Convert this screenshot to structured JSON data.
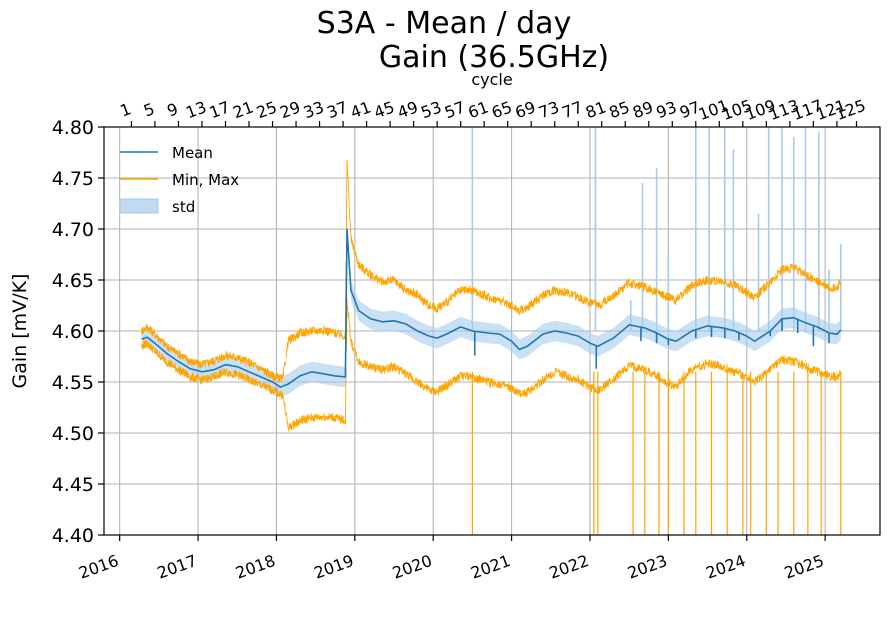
{
  "chart_data": {
    "type": "line",
    "title_line1": "S3A - Mean / day",
    "title_line2": "Gain (36.5GHz)",
    "ylabel": "Gain [mV/K]",
    "top_xlabel": "cycle",
    "ylim": [
      4.4,
      4.8
    ],
    "xlim": [
      2015.8,
      2025.7
    ],
    "y_ticks": [
      "4.40",
      "4.45",
      "4.50",
      "4.55",
      "4.60",
      "4.65",
      "4.70",
      "4.75",
      "4.80"
    ],
    "x_ticks": [
      {
        "label": "2016",
        "value": 2016.0
      },
      {
        "label": "2017",
        "value": 2017.0
      },
      {
        "label": "2018",
        "value": 2018.0
      },
      {
        "label": "2019",
        "value": 2019.0
      },
      {
        "label": "2020",
        "value": 2020.0
      },
      {
        "label": "2021",
        "value": 2021.0
      },
      {
        "label": "2022",
        "value": 2022.0
      },
      {
        "label": "2023",
        "value": 2023.0
      },
      {
        "label": "2024",
        "value": 2024.0
      },
      {
        "label": "2025",
        "value": 2025.0
      }
    ],
    "top_ticks": [
      {
        "label": "1",
        "value": 2016.15
      },
      {
        "label": "5",
        "value": 2016.45
      },
      {
        "label": "9",
        "value": 2016.75
      },
      {
        "label": "13",
        "value": 2017.05
      },
      {
        "label": "17",
        "value": 2017.35
      },
      {
        "label": "21",
        "value": 2017.65
      },
      {
        "label": "25",
        "value": 2017.95
      },
      {
        "label": "29",
        "value": 2018.25
      },
      {
        "label": "33",
        "value": 2018.55
      },
      {
        "label": "37",
        "value": 2018.85
      },
      {
        "label": "41",
        "value": 2019.15
      },
      {
        "label": "45",
        "value": 2019.45
      },
      {
        "label": "49",
        "value": 2019.75
      },
      {
        "label": "53",
        "value": 2020.05
      },
      {
        "label": "57",
        "value": 2020.35
      },
      {
        "label": "61",
        "value": 2020.65
      },
      {
        "label": "65",
        "value": 2020.95
      },
      {
        "label": "69",
        "value": 2021.25
      },
      {
        "label": "73",
        "value": 2021.55
      },
      {
        "label": "77",
        "value": 2021.85
      },
      {
        "label": "81",
        "value": 2022.15
      },
      {
        "label": "85",
        "value": 2022.45
      },
      {
        "label": "89",
        "value": 2022.75
      },
      {
        "label": "93",
        "value": 2023.05
      },
      {
        "label": "97",
        "value": 2023.35
      },
      {
        "label": "101",
        "value": 2023.65
      },
      {
        "label": "105",
        "value": 2023.95
      },
      {
        "label": "109",
        "value": 2024.25
      },
      {
        "label": "113",
        "value": 2024.55
      },
      {
        "label": "117",
        "value": 2024.85
      },
      {
        "label": "121",
        "value": 2025.15
      },
      {
        "label": "125",
        "value": 2025.4
      }
    ],
    "legend": [
      {
        "name": "Mean",
        "color": "#1f77b4",
        "style": "line"
      },
      {
        "name": "Min, Max",
        "color": "#ffa500",
        "style": "line"
      },
      {
        "name": "std",
        "color": "#a6cbec",
        "style": "patch"
      }
    ],
    "series": [
      {
        "name": "Mean",
        "color": "#1f77b4",
        "points": [
          [
            2016.28,
            4.592
          ],
          [
            2016.35,
            4.594
          ],
          [
            2016.45,
            4.588
          ],
          [
            2016.6,
            4.578
          ],
          [
            2016.75,
            4.57
          ],
          [
            2016.9,
            4.563
          ],
          [
            2017.05,
            4.56
          ],
          [
            2017.2,
            4.562
          ],
          [
            2017.35,
            4.567
          ],
          [
            2017.5,
            4.565
          ],
          [
            2017.65,
            4.56
          ],
          [
            2017.8,
            4.555
          ],
          [
            2017.95,
            4.55
          ],
          [
            2018.05,
            4.545
          ],
          [
            2018.15,
            4.548
          ],
          [
            2018.3,
            4.556
          ],
          [
            2018.45,
            4.56
          ],
          [
            2018.6,
            4.558
          ],
          [
            2018.75,
            4.556
          ],
          [
            2018.88,
            4.555
          ],
          [
            2018.9,
            4.7
          ],
          [
            2018.95,
            4.64
          ],
          [
            2019.05,
            4.62
          ],
          [
            2019.2,
            4.612
          ],
          [
            2019.35,
            4.609
          ],
          [
            2019.5,
            4.61
          ],
          [
            2019.65,
            4.607
          ],
          [
            2019.8,
            4.6
          ],
          [
            2019.95,
            4.595
          ],
          [
            2020.05,
            4.593
          ],
          [
            2020.2,
            4.598
          ],
          [
            2020.35,
            4.604
          ],
          [
            2020.5,
            4.6
          ],
          [
            2020.7,
            4.598
          ],
          [
            2020.85,
            4.597
          ],
          [
            2021.0,
            4.59
          ],
          [
            2021.1,
            4.582
          ],
          [
            2021.2,
            4.585
          ],
          [
            2021.4,
            4.597
          ],
          [
            2021.55,
            4.6
          ],
          [
            2021.7,
            4.598
          ],
          [
            2021.85,
            4.595
          ],
          [
            2022.0,
            4.588
          ],
          [
            2022.1,
            4.585
          ],
          [
            2022.3,
            4.593
          ],
          [
            2022.5,
            4.606
          ],
          [
            2022.7,
            4.603
          ],
          [
            2022.85,
            4.598
          ],
          [
            2023.0,
            4.592
          ],
          [
            2023.1,
            4.59
          ],
          [
            2023.3,
            4.6
          ],
          [
            2023.5,
            4.605
          ],
          [
            2023.7,
            4.603
          ],
          [
            2023.85,
            4.6
          ],
          [
            2024.0,
            4.595
          ],
          [
            2024.1,
            4.59
          ],
          [
            2024.3,
            4.6
          ],
          [
            2024.45,
            4.612
          ],
          [
            2024.6,
            4.613
          ],
          [
            2024.75,
            4.608
          ],
          [
            2024.9,
            4.604
          ],
          [
            2025.05,
            4.598
          ],
          [
            2025.15,
            4.597
          ],
          [
            2025.2,
            4.601
          ]
        ]
      },
      {
        "name": "Max",
        "color": "#ffa500",
        "points": [
          [
            2016.28,
            4.6
          ],
          [
            2016.35,
            4.604
          ],
          [
            2016.45,
            4.597
          ],
          [
            2016.6,
            4.585
          ],
          [
            2016.75,
            4.578
          ],
          [
            2016.9,
            4.57
          ],
          [
            2017.05,
            4.567
          ],
          [
            2017.2,
            4.571
          ],
          [
            2017.35,
            4.576
          ],
          [
            2017.5,
            4.574
          ],
          [
            2017.65,
            4.569
          ],
          [
            2017.8,
            4.563
          ],
          [
            2017.95,
            4.556
          ],
          [
            2018.08,
            4.553
          ],
          [
            2018.15,
            4.59
          ],
          [
            2018.3,
            4.598
          ],
          [
            2018.45,
            4.6
          ],
          [
            2018.6,
            4.601
          ],
          [
            2018.75,
            4.598
          ],
          [
            2018.88,
            4.595
          ],
          [
            2018.9,
            4.77
          ],
          [
            2018.95,
            4.69
          ],
          [
            2019.05,
            4.665
          ],
          [
            2019.2,
            4.655
          ],
          [
            2019.35,
            4.648
          ],
          [
            2019.5,
            4.65
          ],
          [
            2019.65,
            4.64
          ],
          [
            2019.8,
            4.635
          ],
          [
            2019.95,
            4.625
          ],
          [
            2020.05,
            4.622
          ],
          [
            2020.2,
            4.63
          ],
          [
            2020.35,
            4.64
          ],
          [
            2020.5,
            4.64
          ],
          [
            2020.7,
            4.633
          ],
          [
            2020.85,
            4.63
          ],
          [
            2021.0,
            4.625
          ],
          [
            2021.1,
            4.62
          ],
          [
            2021.2,
            4.623
          ],
          [
            2021.4,
            4.635
          ],
          [
            2021.55,
            4.64
          ],
          [
            2021.7,
            4.638
          ],
          [
            2021.85,
            4.633
          ],
          [
            2022.0,
            4.628
          ],
          [
            2022.1,
            4.625
          ],
          [
            2022.3,
            4.635
          ],
          [
            2022.5,
            4.647
          ],
          [
            2022.7,
            4.643
          ],
          [
            2022.85,
            4.638
          ],
          [
            2023.0,
            4.633
          ],
          [
            2023.1,
            4.63
          ],
          [
            2023.3,
            4.645
          ],
          [
            2023.5,
            4.65
          ],
          [
            2023.7,
            4.648
          ],
          [
            2023.85,
            4.645
          ],
          [
            2024.0,
            4.638
          ],
          [
            2024.1,
            4.633
          ],
          [
            2024.3,
            4.648
          ],
          [
            2024.45,
            4.66
          ],
          [
            2024.6,
            4.662
          ],
          [
            2024.75,
            4.655
          ],
          [
            2024.9,
            4.648
          ],
          [
            2025.05,
            4.643
          ],
          [
            2025.15,
            4.642
          ],
          [
            2025.2,
            4.648
          ]
        ]
      },
      {
        "name": "Min",
        "color": "#ffa500",
        "points": [
          [
            2016.28,
            4.585
          ],
          [
            2016.35,
            4.588
          ],
          [
            2016.45,
            4.58
          ],
          [
            2016.6,
            4.57
          ],
          [
            2016.75,
            4.562
          ],
          [
            2016.9,
            4.555
          ],
          [
            2017.05,
            4.552
          ],
          [
            2017.2,
            4.555
          ],
          [
            2017.35,
            4.56
          ],
          [
            2017.5,
            4.557
          ],
          [
            2017.65,
            4.552
          ],
          [
            2017.8,
            4.547
          ],
          [
            2017.95,
            4.542
          ],
          [
            2018.08,
            4.537
          ],
          [
            2018.15,
            4.505
          ],
          [
            2018.3,
            4.512
          ],
          [
            2018.45,
            4.515
          ],
          [
            2018.6,
            4.516
          ],
          [
            2018.75,
            4.515
          ],
          [
            2018.88,
            4.512
          ],
          [
            2018.9,
            4.63
          ],
          [
            2018.95,
            4.59
          ],
          [
            2019.05,
            4.57
          ],
          [
            2019.2,
            4.565
          ],
          [
            2019.35,
            4.562
          ],
          [
            2019.5,
            4.565
          ],
          [
            2019.65,
            4.558
          ],
          [
            2019.8,
            4.55
          ],
          [
            2019.95,
            4.542
          ],
          [
            2020.05,
            4.54
          ],
          [
            2020.2,
            4.548
          ],
          [
            2020.35,
            4.556
          ],
          [
            2020.5,
            4.555
          ],
          [
            2020.7,
            4.55
          ],
          [
            2020.85,
            4.548
          ],
          [
            2021.0,
            4.543
          ],
          [
            2021.1,
            4.538
          ],
          [
            2021.2,
            4.54
          ],
          [
            2021.4,
            4.552
          ],
          [
            2021.55,
            4.56
          ],
          [
            2021.7,
            4.556
          ],
          [
            2021.85,
            4.552
          ],
          [
            2022.0,
            4.545
          ],
          [
            2022.1,
            4.542
          ],
          [
            2022.3,
            4.552
          ],
          [
            2022.5,
            4.566
          ],
          [
            2022.7,
            4.562
          ],
          [
            2022.85,
            4.556
          ],
          [
            2023.0,
            4.548
          ],
          [
            2023.1,
            4.546
          ],
          [
            2023.3,
            4.562
          ],
          [
            2023.5,
            4.568
          ],
          [
            2023.7,
            4.565
          ],
          [
            2023.85,
            4.56
          ],
          [
            2024.0,
            4.555
          ],
          [
            2024.1,
            4.55
          ],
          [
            2024.3,
            4.562
          ],
          [
            2024.45,
            4.572
          ],
          [
            2024.6,
            4.57
          ],
          [
            2024.75,
            4.565
          ],
          [
            2024.9,
            4.56
          ],
          [
            2025.05,
            4.556
          ],
          [
            2025.15,
            4.554
          ],
          [
            2025.2,
            4.56
          ]
        ]
      }
    ],
    "std_halfwidth": 0.01,
    "mean_dips": [
      [
        2020.53,
        4.576
      ],
      [
        2022.08,
        4.563
      ],
      [
        2022.65,
        4.59
      ],
      [
        2022.85,
        4.588
      ],
      [
        2023.0,
        4.586
      ],
      [
        2023.35,
        4.593
      ],
      [
        2023.55,
        4.594
      ],
      [
        2023.72,
        4.593
      ],
      [
        2023.9,
        4.591
      ],
      [
        2024.3,
        4.595
      ],
      [
        2024.45,
        4.6
      ],
      [
        2024.65,
        4.598
      ],
      [
        2024.85,
        4.585
      ],
      [
        2025.05,
        4.588
      ]
    ],
    "min_spikes": [
      [
        2020.5,
        4.4
      ],
      [
        2022.05,
        4.4
      ],
      [
        2022.1,
        4.4
      ],
      [
        2022.55,
        4.4
      ],
      [
        2022.7,
        4.4
      ],
      [
        2022.88,
        4.4
      ],
      [
        2023.0,
        4.4
      ],
      [
        2023.2,
        4.4
      ],
      [
        2023.35,
        4.4
      ],
      [
        2023.55,
        4.4
      ],
      [
        2023.75,
        4.4
      ],
      [
        2023.95,
        4.4
      ],
      [
        2024.05,
        4.4
      ],
      [
        2024.25,
        4.4
      ],
      [
        2024.4,
        4.4
      ],
      [
        2024.6,
        4.4
      ],
      [
        2024.78,
        4.4
      ],
      [
        2024.95,
        4.4
      ],
      [
        2025.2,
        4.4
      ]
    ],
    "std_spikes": [
      [
        2020.5,
        4.8
      ],
      [
        2022.07,
        4.8
      ],
      [
        2022.52,
        4.63
      ],
      [
        2022.67,
        4.745
      ],
      [
        2022.85,
        4.76
      ],
      [
        2023.0,
        4.68
      ],
      [
        2023.35,
        4.8
      ],
      [
        2023.52,
        4.8
      ],
      [
        2023.72,
        4.8
      ],
      [
        2023.83,
        4.778
      ],
      [
        2024.15,
        4.715
      ],
      [
        2024.28,
        4.8
      ],
      [
        2024.45,
        4.8
      ],
      [
        2024.6,
        4.79
      ],
      [
        2024.75,
        4.8
      ],
      [
        2024.92,
        4.795
      ],
      [
        2025.05,
        4.66
      ],
      [
        2025.2,
        4.685
      ]
    ]
  }
}
